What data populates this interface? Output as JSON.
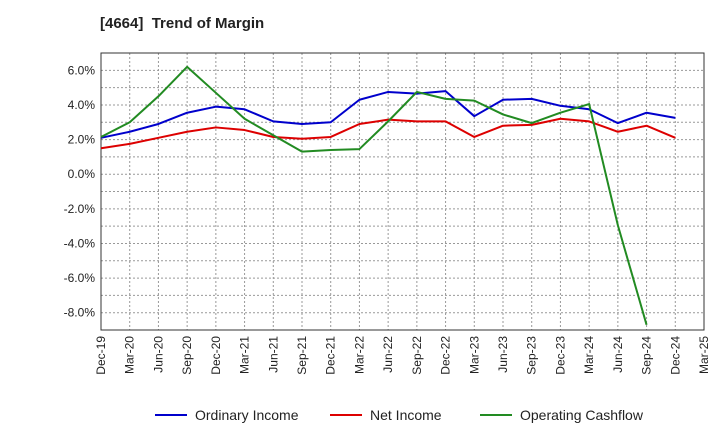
{
  "chart_data": {
    "type": "line",
    "title": "[4664]  Trend of Margin",
    "xlabel": "",
    "ylabel": "",
    "ylim": [
      -9.0,
      7.0
    ],
    "y_ticks": [
      6.0,
      4.0,
      2.0,
      0.0,
      -2.0,
      -4.0,
      -6.0,
      -8.0
    ],
    "y_tick_labels": [
      "6.0%",
      "4.0%",
      "2.0%",
      "0.0%",
      "-2.0%",
      "-4.0%",
      "-6.0%",
      "-8.0%"
    ],
    "x_tick_labels": [
      "Dec-19",
      "Mar-20",
      "Jun-20",
      "Sep-20",
      "Dec-20",
      "Mar-21",
      "Jun-21",
      "Sep-21",
      "Dec-21",
      "Mar-22",
      "Jun-22",
      "Sep-22",
      "Dec-22",
      "Mar-23",
      "Jun-23",
      "Sep-23",
      "Dec-23",
      "Mar-24",
      "Jun-24",
      "Sep-24",
      "Dec-24",
      "Mar-25"
    ],
    "grid": true,
    "legend_position": "bottom",
    "series": [
      {
        "name": "Ordinary Income",
        "color": "#0000cc",
        "values": [
          2.1,
          2.45,
          2.9,
          3.55,
          3.9,
          3.75,
          3.05,
          2.9,
          3.0,
          4.3,
          4.75,
          4.65,
          4.8,
          3.35,
          4.3,
          4.35,
          3.95,
          3.75,
          2.95,
          3.55,
          3.25,
          null
        ]
      },
      {
        "name": "Net Income",
        "color": "#dd0000",
        "values": [
          1.5,
          1.75,
          2.1,
          2.45,
          2.7,
          2.55,
          2.15,
          2.05,
          2.15,
          2.9,
          3.15,
          3.05,
          3.05,
          2.15,
          2.8,
          2.85,
          3.2,
          3.05,
          2.45,
          2.8,
          2.1,
          null
        ]
      },
      {
        "name": "Operating Cashflow",
        "color": "#228b22",
        "values": [
          2.15,
          3.0,
          4.5,
          6.2,
          4.7,
          3.2,
          2.25,
          1.3,
          1.4,
          1.45,
          3.05,
          4.75,
          4.35,
          4.25,
          3.45,
          2.95,
          3.55,
          4.05,
          -2.95,
          -8.7,
          null,
          null
        ]
      }
    ]
  }
}
